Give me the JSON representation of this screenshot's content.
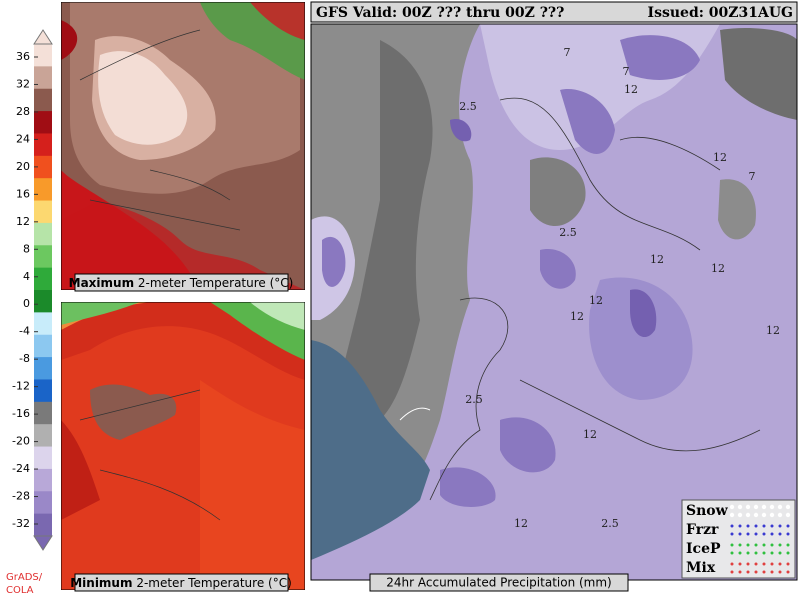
{
  "colorbar": {
    "ticks": [
      36,
      32,
      28,
      24,
      20,
      16,
      12,
      8,
      4,
      0,
      -4,
      -8,
      -12,
      -16,
      -20,
      -24,
      -28,
      -32
    ]
  },
  "credit": {
    "line1": "GrADS/",
    "line2": "COLA"
  },
  "max_panel": {
    "caption_bold": "Maximum",
    "caption_rest": "2-meter Temperature (°C)"
  },
  "min_panel": {
    "caption_bold": "Minimum",
    "caption_rest": "2-meter Temperature (°C)"
  },
  "precip_panel": {
    "header_left": "GFS Valid: 00Z ??? thru 00Z ???",
    "header_right": "Issued: 00Z31AUG",
    "caption": "24hr Accumulated Precipitation (mm)",
    "contour_labels": [
      "7",
      "7",
      "12",
      "2.5",
      "12",
      "7",
      "2.5",
      "12",
      "12",
      "12",
      "12",
      "2.5",
      "12",
      "12",
      "2.5",
      "12"
    ],
    "legend": [
      "Snow",
      "Frzr",
      "IceP",
      "Mix"
    ]
  }
}
